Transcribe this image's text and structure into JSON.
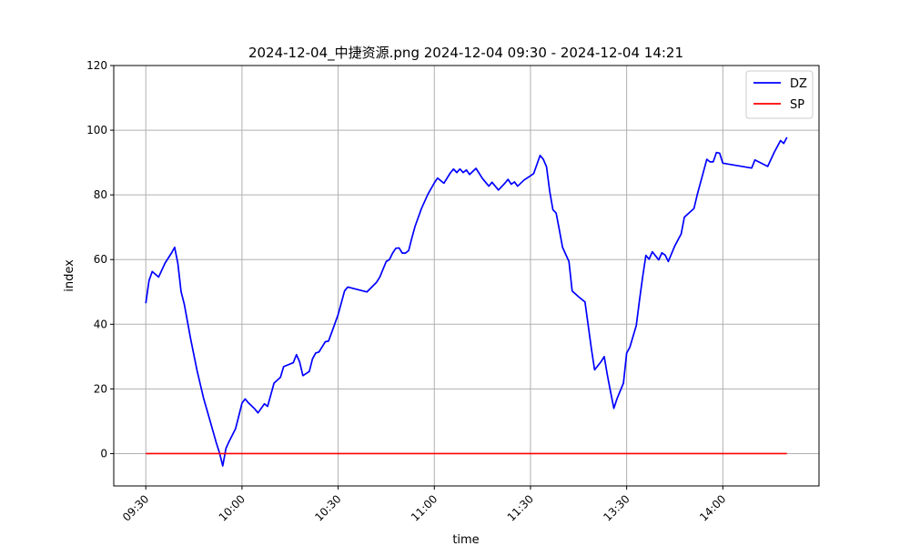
{
  "chart_data": {
    "type": "line",
    "title": "2024-12-04_中捷资源.png 2024-12-04 09:30 - 2024-12-04 14:21",
    "xlabel": "time",
    "ylabel": "index",
    "ylim": [
      -10,
      120
    ],
    "yticks": [
      0,
      20,
      40,
      60,
      80,
      100,
      120
    ],
    "xticks": [
      "09:30",
      "10:00",
      "10:30",
      "11:00",
      "11:30",
      "13:30",
      "14:00"
    ],
    "grid": true,
    "legend_position": "top-right",
    "note_x": "x values are trading-session minutes from 09:30 (lunch break removed; 11:30 and 13:00 coincide)",
    "series": [
      {
        "name": "DZ",
        "color": "#0000ff",
        "points": [
          [
            0,
            46.5
          ],
          [
            1,
            53.5
          ],
          [
            2,
            56.3
          ],
          [
            4,
            54.6
          ],
          [
            6,
            58.9
          ],
          [
            8,
            62.0
          ],
          [
            9,
            63.8
          ],
          [
            10,
            58.8
          ],
          [
            11,
            50.1
          ],
          [
            12,
            46.2
          ],
          [
            14,
            35.4
          ],
          [
            16,
            25.6
          ],
          [
            18,
            17.2
          ],
          [
            20,
            10.3
          ],
          [
            21,
            6.8
          ],
          [
            22,
            3.3
          ],
          [
            23,
            0.2
          ],
          [
            24,
            -3.8
          ],
          [
            25,
            1.6
          ],
          [
            26,
            3.8
          ],
          [
            28,
            7.7
          ],
          [
            29,
            11.6
          ],
          [
            30,
            15.6
          ],
          [
            31,
            16.9
          ],
          [
            32,
            15.7
          ],
          [
            34,
            13.8
          ],
          [
            35,
            12.6
          ],
          [
            37,
            15.4
          ],
          [
            38,
            14.6
          ],
          [
            40,
            21.8
          ],
          [
            42,
            23.6
          ],
          [
            43,
            26.9
          ],
          [
            46,
            28.1
          ],
          [
            47,
            30.6
          ],
          [
            48,
            28.3
          ],
          [
            49,
            24.1
          ],
          [
            51,
            25.4
          ],
          [
            52,
            29.3
          ],
          [
            53,
            31.1
          ],
          [
            54,
            31.4
          ],
          [
            56,
            34.6
          ],
          [
            57,
            34.8
          ],
          [
            58,
            37.5
          ],
          [
            60,
            43.0
          ],
          [
            62,
            50.3
          ],
          [
            63,
            51.5
          ],
          [
            69,
            50.0
          ],
          [
            72,
            53.0
          ],
          [
            73,
            54.6
          ],
          [
            75,
            59.4
          ],
          [
            76,
            60.0
          ],
          [
            77,
            62.0
          ],
          [
            78,
            63.5
          ],
          [
            79,
            63.6
          ],
          [
            80,
            62.0
          ],
          [
            81,
            62.0
          ],
          [
            82,
            62.8
          ],
          [
            83,
            66.7
          ],
          [
            84,
            70.3
          ],
          [
            86,
            75.8
          ],
          [
            88,
            80.2
          ],
          [
            90,
            83.7
          ],
          [
            91,
            85.2
          ],
          [
            93,
            83.6
          ],
          [
            95,
            86.8
          ],
          [
            96,
            88.0
          ],
          [
            97,
            86.9
          ],
          [
            98,
            88.0
          ],
          [
            99,
            86.9
          ],
          [
            100,
            87.7
          ],
          [
            101,
            86.3
          ],
          [
            103,
            88.2
          ],
          [
            105,
            85.1
          ],
          [
            107,
            82.7
          ],
          [
            108,
            83.9
          ],
          [
            110,
            81.5
          ],
          [
            112,
            83.6
          ],
          [
            113,
            84.8
          ],
          [
            114,
            83.3
          ],
          [
            115,
            84.0
          ],
          [
            116,
            82.7
          ],
          [
            118,
            84.6
          ],
          [
            120,
            85.9
          ],
          [
            121,
            86.6
          ],
          [
            122,
            89.4
          ],
          [
            123,
            92.2
          ],
          [
            124,
            91.0
          ],
          [
            125,
            88.7
          ],
          [
            126,
            81.1
          ],
          [
            127,
            75.4
          ],
          [
            128,
            74.4
          ],
          [
            129,
            69.2
          ],
          [
            130,
            63.8
          ],
          [
            132,
            59.4
          ],
          [
            133,
            50.3
          ],
          [
            135,
            48.5
          ],
          [
            137,
            46.9
          ],
          [
            138,
            39.7
          ],
          [
            139,
            32.4
          ],
          [
            140,
            25.9
          ],
          [
            142,
            28.4
          ],
          [
            143,
            30.0
          ],
          [
            144,
            24.2
          ],
          [
            145,
            19.0
          ],
          [
            146,
            14.0
          ],
          [
            147,
            17.0
          ],
          [
            149,
            21.8
          ],
          [
            150,
            31.1
          ],
          [
            151,
            32.9
          ],
          [
            153,
            39.6
          ],
          [
            154,
            47.4
          ],
          [
            155,
            54.7
          ],
          [
            156,
            61.3
          ],
          [
            157,
            60.1
          ],
          [
            158,
            62.4
          ],
          [
            160,
            59.9
          ],
          [
            161,
            62.1
          ],
          [
            162,
            61.4
          ],
          [
            163,
            59.4
          ],
          [
            165,
            64.2
          ],
          [
            167,
            67.9
          ],
          [
            168,
            73.1
          ],
          [
            171,
            75.8
          ],
          [
            172,
            80.0
          ],
          [
            174,
            87.3
          ],
          [
            175,
            91.0
          ],
          [
            176,
            90.2
          ],
          [
            177,
            90.2
          ],
          [
            178,
            93.1
          ],
          [
            179,
            92.9
          ],
          [
            180,
            89.8
          ],
          [
            189,
            88.3
          ],
          [
            190,
            90.8
          ],
          [
            194,
            88.8
          ],
          [
            196,
            93.1
          ],
          [
            198,
            96.8
          ],
          [
            199,
            95.9
          ],
          [
            200,
            97.8
          ]
        ]
      },
      {
        "name": "SP",
        "color": "#ff0000",
        "points": [
          [
            0,
            0
          ],
          [
            200,
            0
          ]
        ]
      }
    ]
  }
}
